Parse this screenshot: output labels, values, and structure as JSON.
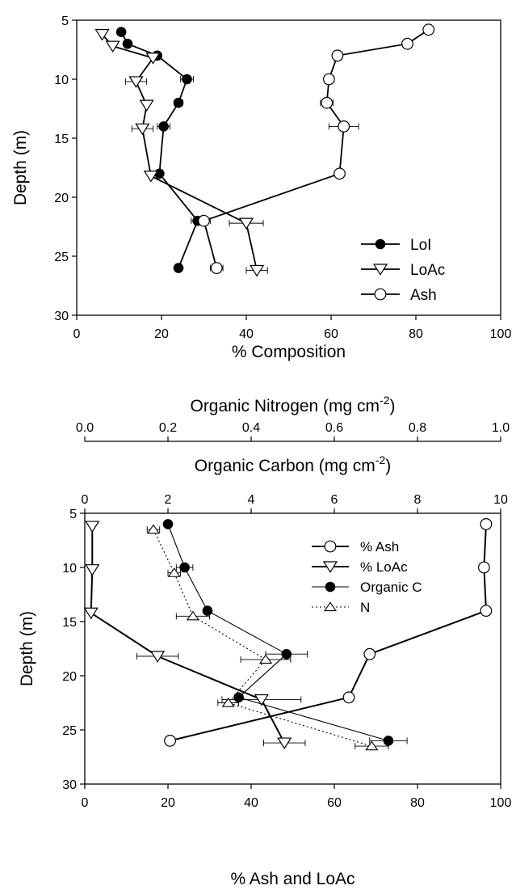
{
  "chart_data": [
    {
      "type": "line",
      "orientation": "depth-profile",
      "xlabel": "% Composition",
      "ylabel": "Depth (m)",
      "xlim": [
        0,
        100
      ],
      "ylim": [
        5,
        30
      ],
      "y_inverted": true,
      "xticks": [
        "0",
        "20",
        "40",
        "60",
        "80",
        "100"
      ],
      "yticks": [
        "5",
        "10",
        "15",
        "20",
        "25",
        "30"
      ],
      "legend_position": "bottom-right",
      "series": [
        {
          "name": "LoI",
          "marker": "filled-circle",
          "points": [
            {
              "x": 10.5,
              "y": 6
            },
            {
              "x": 12,
              "y": 7
            },
            {
              "x": 19,
              "y": 8
            },
            {
              "x": 26,
              "y": 10
            },
            {
              "x": 24,
              "y": 12
            },
            {
              "x": 20.5,
              "y": 14
            },
            {
              "x": 19.5,
              "y": 18
            },
            {
              "x": 28.5,
              "y": 22
            },
            {
              "x": 24,
              "y": 26
            }
          ],
          "xerr": [
            0,
            0,
            0,
            1.5,
            1,
            1.5,
            0,
            1.5,
            0
          ]
        },
        {
          "name": "LoAc",
          "marker": "open-triangle-down",
          "points": [
            {
              "x": 6,
              "y": 6.2
            },
            {
              "x": 8.5,
              "y": 7.2
            },
            {
              "x": 18,
              "y": 8.2
            },
            {
              "x": 14,
              "y": 10.2
            },
            {
              "x": 16.5,
              "y": 12.2
            },
            {
              "x": 15.5,
              "y": 14.2
            },
            {
              "x": 17.5,
              "y": 18.2
            },
            {
              "x": 40,
              "y": 22.2
            },
            {
              "x": 42.5,
              "y": 26.2
            }
          ],
          "xerr": [
            0,
            0,
            0,
            2.5,
            0,
            2.5,
            0,
            4,
            2.5
          ]
        },
        {
          "name": "Ash",
          "marker": "open-circle",
          "points": [
            {
              "x": 83,
              "y": 5.8
            },
            {
              "x": 78,
              "y": 7
            },
            {
              "x": 61.5,
              "y": 8
            },
            {
              "x": 59.5,
              "y": 10
            },
            {
              "x": 59,
              "y": 12
            },
            {
              "x": 63,
              "y": 14
            },
            {
              "x": 62,
              "y": 18
            },
            {
              "x": 30,
              "y": 22
            },
            {
              "x": 33,
              "y": 26
            }
          ],
          "xerr": [
            0,
            0,
            0,
            0,
            1.5,
            3.5,
            0,
            1.5,
            1.5
          ]
        }
      ]
    },
    {
      "type": "line",
      "orientation": "depth-profile",
      "xlabel": "% Ash and LoAc",
      "ylabel": "Depth (m)",
      "xlim": [
        0,
        100
      ],
      "ylim": [
        5,
        30
      ],
      "y_inverted": true,
      "xticks": [
        "0",
        "20",
        "40",
        "60",
        "80",
        "100"
      ],
      "yticks": [
        "5",
        "10",
        "15",
        "20",
        "25",
        "30"
      ],
      "top_axis_carbon": {
        "label_main": "Organic Carbon  (mg cm",
        "label_sup": "-2",
        "label_close": ")",
        "lim": [
          0,
          10
        ],
        "ticks": [
          "0",
          "2",
          "4",
          "6",
          "8",
          "10"
        ]
      },
      "top_axis_nitrogen": {
        "label_main": "Organic Nitrogen (mg cm",
        "label_sup": "-2",
        "label_close": ")",
        "lim": [
          0,
          1
        ],
        "ticks": [
          "0.0",
          "0.2",
          "0.4",
          "0.6",
          "0.8",
          "1.0"
        ]
      },
      "legend_position": "top-right",
      "series": [
        {
          "name": "% Ash",
          "axis": "bottom",
          "marker": "open-circle",
          "points": [
            {
              "x": 96.5,
              "y": 6
            },
            {
              "x": 96,
              "y": 10
            },
            {
              "x": 96.5,
              "y": 14
            },
            {
              "x": 68.5,
              "y": 18
            },
            {
              "x": 63.5,
              "y": 22
            },
            {
              "x": 20.5,
              "y": 26
            }
          ],
          "xerr": [
            0,
            0,
            0,
            0,
            0,
            0
          ]
        },
        {
          "name": "% LoAc",
          "axis": "bottom",
          "marker": "open-triangle-down",
          "points": [
            {
              "x": 1.8,
              "y": 6.2
            },
            {
              "x": 1.8,
              "y": 10.2
            },
            {
              "x": 1.5,
              "y": 14.2
            },
            {
              "x": 17.5,
              "y": 18.2
            },
            {
              "x": 42.5,
              "y": 22.2
            },
            {
              "x": 48,
              "y": 26.2
            }
          ],
          "xerr": [
            0,
            0,
            0,
            5,
            9.5,
            5
          ]
        },
        {
          "name": "Organic C",
          "axis": "top-carbon",
          "marker": "filled-circle",
          "points": [
            {
              "x": 2,
              "y": 6
            },
            {
              "x": 2.4,
              "y": 10
            },
            {
              "x": 2.95,
              "y": 14
            },
            {
              "x": 4.85,
              "y": 18
            },
            {
              "x": 3.7,
              "y": 22
            },
            {
              "x": 7.3,
              "y": 26
            }
          ],
          "xerr": [
            0,
            0.2,
            0,
            0.5,
            0,
            0.45
          ]
        },
        {
          "name": "N",
          "axis": "top-nitrogen",
          "marker": "open-triangle-up",
          "dotted": true,
          "points": [
            {
              "x": 0.165,
              "y": 6.5
            },
            {
              "x": 0.215,
              "y": 10.5
            },
            {
              "x": 0.26,
              "y": 14.5
            },
            {
              "x": 0.435,
              "y": 18.5
            },
            {
              "x": 0.345,
              "y": 22.5
            },
            {
              "x": 0.69,
              "y": 26.5
            }
          ],
          "xerr": [
            0.015,
            0.015,
            0.04,
            0.06,
            0.025,
            0.04
          ]
        }
      ]
    }
  ]
}
